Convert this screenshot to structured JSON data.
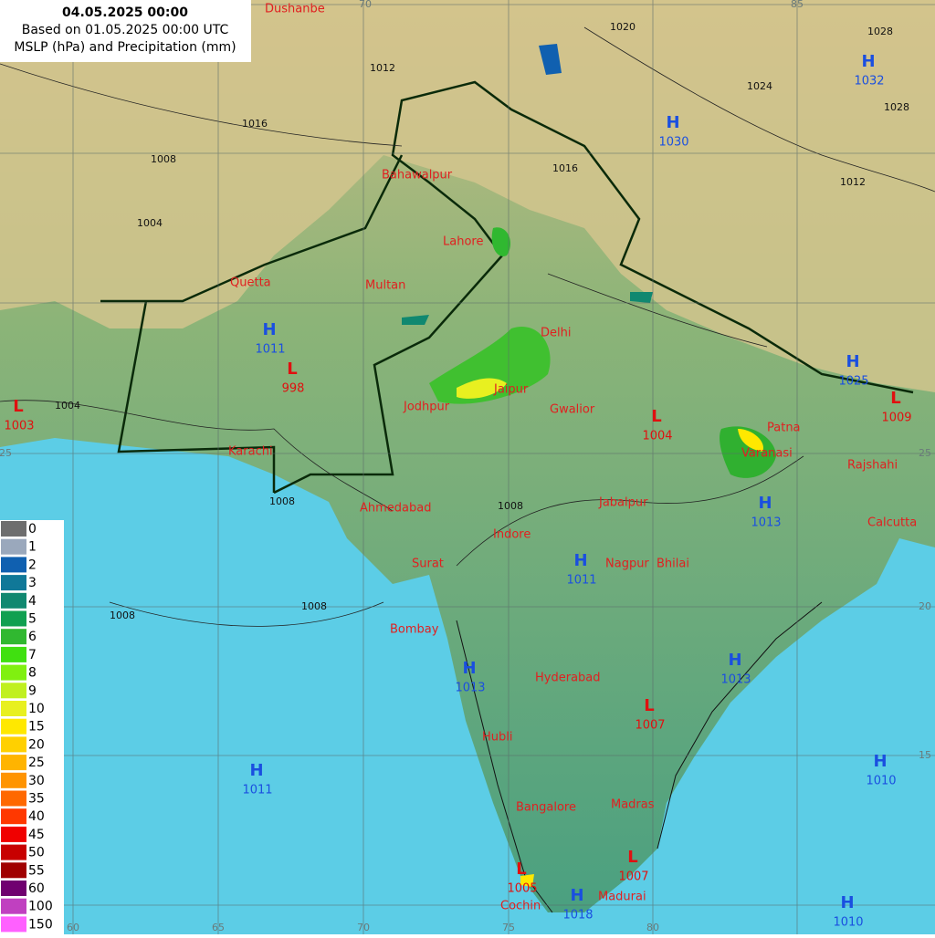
{
  "header": {
    "date": "04.05.2025 00:00",
    "based_on": "Based on 01.05.2025 00:00 UTC",
    "title": "MSLP (hPa) and Precipitation (mm)"
  },
  "cities": [
    "Dushanbe",
    "Lahore",
    "Quetta",
    "Multan",
    "Bahawalpur",
    "Delhi",
    "Jaipur",
    "Jodhpur",
    "Gwalior",
    "Patna",
    "Varanasi",
    "Karachi",
    "Rajshahi",
    "Ahmedabad",
    "Jabalpur",
    "Calcutta",
    "Indore",
    "Surat",
    "Nagpur",
    "Bhilai",
    "Bombay",
    "Hyderabad",
    "Hubli",
    "Madras",
    "Bangalore",
    "Cochin",
    "Madurai"
  ],
  "pressure_centers": [
    {
      "type": "H",
      "value": 1032
    },
    {
      "type": "H",
      "value": 1030
    },
    {
      "type": "H",
      "value": 1011
    },
    {
      "type": "L",
      "value": 998
    },
    {
      "type": "L",
      "value": 1003
    },
    {
      "type": "L",
      "value": 1004
    },
    {
      "type": "H",
      "value": 1025
    },
    {
      "type": "L",
      "value": 1009
    },
    {
      "type": "H",
      "value": 1013
    },
    {
      "type": "H",
      "value": 1011
    },
    {
      "type": "H",
      "value": 1013
    },
    {
      "type": "H",
      "value": 1013
    },
    {
      "type": "L",
      "value": 1007
    },
    {
      "type": "H",
      "value": 1011
    },
    {
      "type": "H",
      "value": 1010
    },
    {
      "type": "L",
      "value": 1007
    },
    {
      "type": "L",
      "value": 1005
    },
    {
      "type": "H",
      "value": 1018
    },
    {
      "type": "H",
      "value": 1010
    }
  ],
  "grid_labels": [
    70,
    85,
    60,
    65,
    70,
    75,
    80,
    25,
    20,
    15,
    25
  ],
  "isobar_labels": [
    1020,
    1028,
    1024,
    1016,
    1012,
    1008,
    1004,
    1004,
    1008,
    1008,
    1008,
    1008,
    1012,
    1016,
    1028
  ],
  "legend": [
    {
      "value": 0,
      "color": "#6e6e6e"
    },
    {
      "value": 1,
      "color": "#9aa8bc"
    },
    {
      "value": 2,
      "color": "#1060b0"
    },
    {
      "value": 3,
      "color": "#107898"
    },
    {
      "value": 4,
      "color": "#108870"
    },
    {
      "value": 5,
      "color": "#10a050"
    },
    {
      "value": 6,
      "color": "#30b830"
    },
    {
      "value": 7,
      "color": "#40e010"
    },
    {
      "value": 8,
      "color": "#80f010"
    },
    {
      "value": 9,
      "color": "#c0f020"
    },
    {
      "value": 10,
      "color": "#e8f020"
    },
    {
      "value": 15,
      "color": "#ffe800"
    },
    {
      "value": 20,
      "color": "#ffd000"
    },
    {
      "value": 25,
      "color": "#ffb400"
    },
    {
      "value": 30,
      "color": "#ff9400"
    },
    {
      "value": 35,
      "color": "#ff6800"
    },
    {
      "value": 40,
      "color": "#ff3800"
    },
    {
      "value": 45,
      "color": "#f00000"
    },
    {
      "value": 50,
      "color": "#c80000"
    },
    {
      "value": 55,
      "color": "#a00000"
    },
    {
      "value": 60,
      "color": "#700070"
    },
    {
      "value": 100,
      "color": "#c040c0"
    },
    {
      "value": 150,
      "color": "#ff60ff"
    }
  ]
}
